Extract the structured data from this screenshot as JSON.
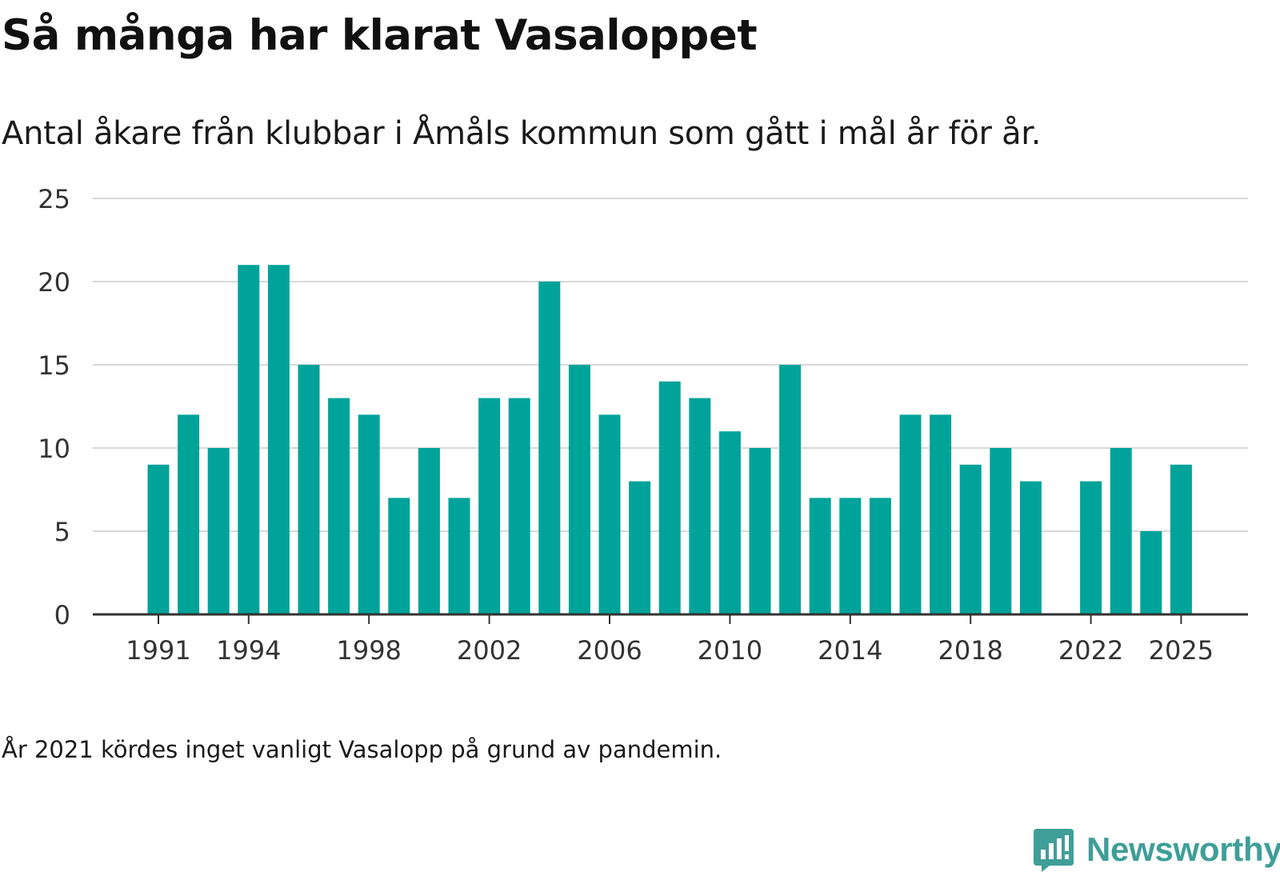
{
  "title": "Så många har klarat Vasaloppet",
  "subtitle": "Antal åkare från klubbar i Åmåls kommun som gått i mål år för år.",
  "note": "År 2021 kördes inget vanligt Vasalopp på grund av pandemin.",
  "brand": {
    "name": "Newsworthy",
    "icon": "newsworthy-logo-icon",
    "color": "#3f9e98"
  },
  "colors": {
    "bar": "#00a39a",
    "grid": "#d9d9d9",
    "axis": "#333333"
  },
  "chart_data": {
    "type": "bar",
    "title": "Så många har klarat Vasaloppet",
    "xlabel": "",
    "ylabel": "",
    "ylim": [
      0,
      25
    ],
    "yticks": [
      0,
      5,
      10,
      15,
      20,
      25
    ],
    "xticks": [
      1991,
      1994,
      1998,
      2002,
      2006,
      2010,
      2014,
      2018,
      2022,
      2025
    ],
    "grid": true,
    "categories": [
      1991,
      1992,
      1993,
      1994,
      1995,
      1996,
      1997,
      1998,
      1999,
      2000,
      2001,
      2002,
      2003,
      2004,
      2005,
      2006,
      2007,
      2008,
      2009,
      2010,
      2011,
      2012,
      2013,
      2014,
      2015,
      2016,
      2017,
      2018,
      2019,
      2020,
      2021,
      2022,
      2023,
      2024,
      2025
    ],
    "values": [
      9,
      12,
      10,
      21,
      21,
      15,
      13,
      12,
      7,
      10,
      7,
      13,
      13,
      20,
      15,
      12,
      8,
      14,
      13,
      11,
      10,
      15,
      7,
      7,
      7,
      12,
      12,
      9,
      10,
      8,
      null,
      8,
      10,
      5,
      9
    ]
  }
}
